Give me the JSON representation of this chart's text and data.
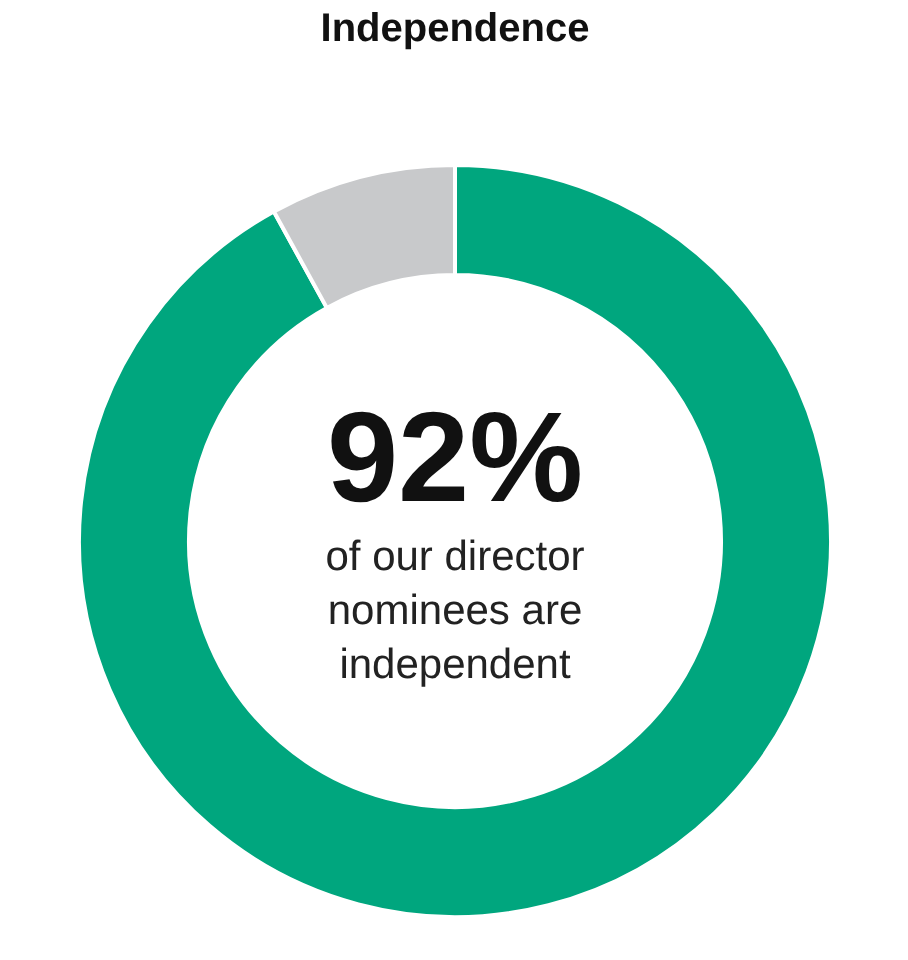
{
  "chart_data": {
    "type": "donut",
    "title": "Independence",
    "categories": [
      null,
      null
    ],
    "values": [
      92,
      8
    ],
    "colors": [
      "#00a67e",
      "#c8c9cb"
    ],
    "annotations": [
      "92%",
      "of our director nominees are independent"
    ]
  }
}
